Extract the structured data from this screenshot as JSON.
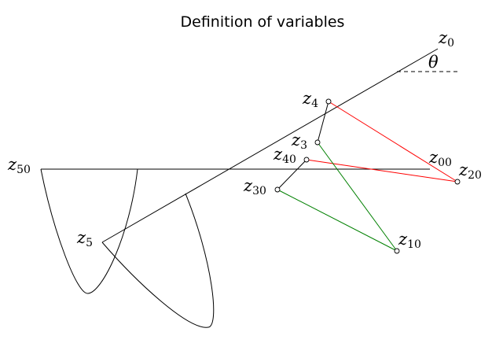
{
  "title": "Definition of variables",
  "labels": {
    "z0": {
      "base": "z",
      "sub": "0"
    },
    "z4": {
      "base": "z",
      "sub": "4"
    },
    "z3": {
      "base": "z",
      "sub": "3"
    },
    "z40": {
      "base": "z",
      "sub": "40"
    },
    "z00": {
      "base": "z",
      "sub": "00"
    },
    "z20": {
      "base": "z",
      "sub": "20"
    },
    "z30": {
      "base": "z",
      "sub": "30"
    },
    "z50": {
      "base": "z",
      "sub": "50"
    },
    "z5": {
      "base": "z",
      "sub": "5"
    },
    "z10": {
      "base": "z",
      "sub": "10"
    },
    "theta": "θ"
  },
  "colors": {
    "structure": "#000000",
    "red_links": "#ff0000",
    "green_links": "#008000"
  }
}
